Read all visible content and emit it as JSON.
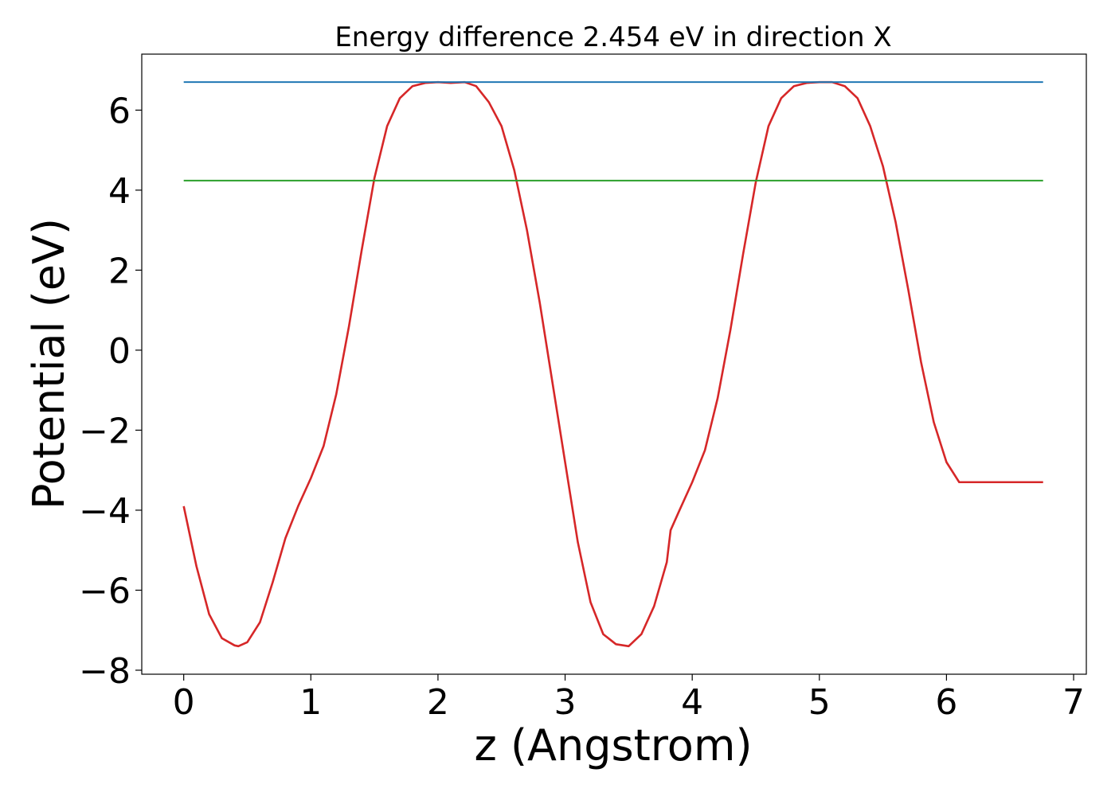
{
  "chart_data": {
    "type": "line",
    "title": "Energy difference 2.454 eV in direction X",
    "xlabel": "z (Angstrom)",
    "ylabel": "Potential (eV)",
    "xlim": [
      -0.33,
      7.1
    ],
    "ylim": [
      -8.1,
      7.4
    ],
    "xticks": [
      0,
      1,
      2,
      3,
      4,
      5,
      6,
      7
    ],
    "yticks": [
      -8,
      -6,
      -4,
      -2,
      0,
      2,
      4,
      6
    ],
    "xtick_labels": [
      "0",
      "1",
      "2",
      "3",
      "4",
      "5",
      "6",
      "7"
    ],
    "ytick_labels": [
      "−8",
      "−6",
      "−4",
      "−2",
      "0",
      "2",
      "4",
      "6"
    ],
    "grid": false,
    "series": [
      {
        "color": "#d62728",
        "x": [
          0,
          0.1,
          0.2,
          0.3,
          0.4,
          0.43,
          0.5,
          0.6,
          0.7,
          0.8,
          0.9,
          1.0,
          1.1,
          1.2,
          1.3,
          1.4,
          1.5,
          1.6,
          1.7,
          1.8,
          1.9,
          2.0,
          2.1,
          2.21,
          2.3,
          2.4,
          2.5,
          2.6,
          2.7,
          2.8,
          2.9,
          3.0,
          3.1,
          3.2,
          3.3,
          3.4,
          3.5,
          3.6,
          3.7,
          3.8,
          3.83,
          3.9,
          4.0,
          4.1,
          4.2,
          4.3,
          4.4,
          4.5,
          4.6,
          4.7,
          4.8,
          4.9,
          5.0,
          5.1,
          5.2,
          5.3,
          5.4,
          5.5,
          5.6,
          5.7,
          5.8,
          5.9,
          6.0,
          6.1,
          6.2,
          6.3,
          6.4,
          6.5,
          6.6,
          6.76
        ],
        "y": [
          -3.9,
          -5.4,
          -6.6,
          -7.2,
          -7.38,
          -7.4,
          -7.3,
          -6.8,
          -5.8,
          -4.7,
          -3.9,
          -3.2,
          -2.4,
          -1.1,
          0.6,
          2.5,
          4.3,
          5.6,
          6.3,
          6.6,
          6.68,
          6.7,
          6.68,
          6.7,
          6.6,
          6.2,
          5.6,
          4.5,
          3.0,
          1.2,
          -0.8,
          -2.8,
          -4.8,
          -6.3,
          -7.1,
          -7.35,
          -7.4,
          -7.1,
          -6.4,
          -5.3,
          -4.5,
          -4.0,
          -3.3,
          -2.5,
          -1.2,
          0.5,
          2.4,
          4.2,
          5.6,
          6.3,
          6.6,
          6.68,
          6.7,
          6.7,
          6.6,
          6.3,
          5.6,
          4.6,
          3.2,
          1.5,
          -0.3,
          -1.8,
          -2.8,
          -3.3,
          -3.3,
          -3.3,
          -3.3,
          -3.3,
          -3.3,
          -3.3
        ]
      },
      {
        "color": "#1f77b4",
        "x": [
          0,
          6.76
        ],
        "y": [
          6.7,
          6.7
        ]
      },
      {
        "color": "#2ca02c",
        "x": [
          0,
          6.76
        ],
        "y": [
          4.24,
          4.24
        ]
      }
    ]
  }
}
